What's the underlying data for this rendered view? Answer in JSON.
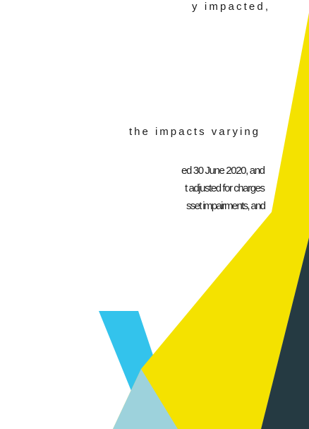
{
  "text_lines": [
    "y    impacted,",
    "the impacts varying",
    "ed 30 June 2020, and",
    "t adjusted for charges",
    "sset impairments, and"
  ]
}
